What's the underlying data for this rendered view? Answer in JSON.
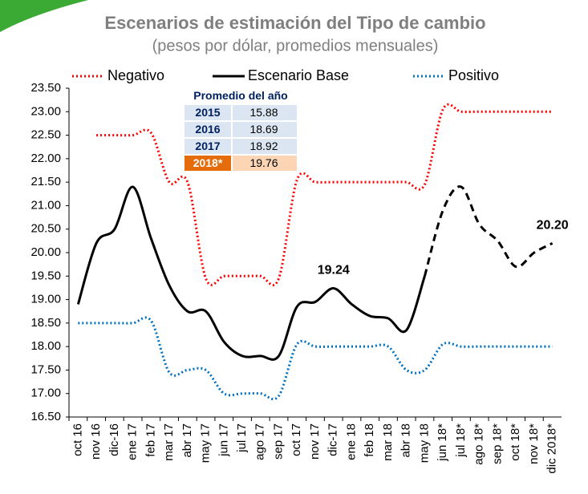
{
  "chart_data": {
    "type": "line",
    "title": "Escenarios de estimación del Tipo de cambio",
    "subtitle": "(pesos por dólar, promedios mensuales)",
    "categories": [
      "oct 16",
      "nov 16",
      "dic-16",
      "ene 17",
      "feb 17",
      "mar 17",
      "abr 17",
      "may 17",
      "jun 17",
      "jul 17",
      "ago 17",
      "sep 17",
      "oct 17",
      "nov 17",
      "dic-17",
      "ene 18",
      "feb 18",
      "mar 18",
      "abr 18",
      "may 18",
      "jun 18*",
      "jul 18*",
      "ago 18*",
      "sep 18*",
      "oct 18*",
      "nov 18*",
      "dic 2018*"
    ],
    "series": [
      {
        "name": "Negativo",
        "color": "#ff0000",
        "style": "dotted",
        "values": [
          null,
          22.5,
          22.5,
          22.5,
          22.55,
          21.5,
          21.5,
          19.45,
          19.5,
          19.5,
          19.5,
          19.45,
          21.55,
          21.5,
          21.5,
          21.5,
          21.5,
          21.5,
          21.5,
          21.45,
          23.05,
          23.0,
          23.0,
          23.0,
          23.0,
          23.0,
          23.0
        ]
      },
      {
        "name": "Escenario Base",
        "color": "#000000",
        "style": "solid",
        "dash_from": 19,
        "values": [
          18.9,
          20.2,
          20.5,
          21.4,
          20.3,
          19.3,
          18.75,
          18.75,
          18.1,
          17.8,
          17.8,
          17.8,
          18.85,
          18.95,
          19.24,
          18.9,
          18.65,
          18.6,
          18.35,
          19.5,
          20.9,
          21.4,
          20.6,
          20.25,
          19.7,
          20.0,
          20.2
        ],
        "value_labels": [
          null,
          null,
          null,
          null,
          null,
          null,
          null,
          null,
          null,
          null,
          null,
          null,
          null,
          null,
          "19.24",
          null,
          null,
          null,
          null,
          null,
          null,
          null,
          null,
          null,
          null,
          null,
          "20.20"
        ]
      },
      {
        "name": "Positivo",
        "color": "#0070c0",
        "style": "dotted",
        "values": [
          18.5,
          18.5,
          18.5,
          18.5,
          18.55,
          17.45,
          17.5,
          17.5,
          17.0,
          17.0,
          17.0,
          16.95,
          18.05,
          18.0,
          18.0,
          18.0,
          18.0,
          18.0,
          17.5,
          17.5,
          18.05,
          18.0,
          18.0,
          18.0,
          18.0,
          18.0,
          18.0
        ]
      }
    ],
    "ylim": [
      16.5,
      23.5
    ],
    "yticks": [
      {
        "value": 16.5,
        "label": "16.50"
      },
      {
        "value": 17,
        "label": "17.00"
      },
      {
        "value": 17.5,
        "label": "17.50"
      },
      {
        "value": 18,
        "label": "18.00"
      },
      {
        "value": 18.5,
        "label": "18.50"
      },
      {
        "value": 19,
        "label": "19.00"
      },
      {
        "value": 19.5,
        "label": "19.50"
      },
      {
        "value": 20,
        "label": "20.00"
      },
      {
        "value": 20.5,
        "label": "20.50"
      },
      {
        "value": 21,
        "label": "21.00"
      },
      {
        "value": 21.5,
        "label": "21.50"
      },
      {
        "value": 22,
        "label": "22.00"
      },
      {
        "value": 22.5,
        "label": "22.50"
      },
      {
        "value": 23,
        "label": "23.00"
      },
      {
        "value": 23.5,
        "label": "23.50"
      }
    ],
    "grid": false,
    "legend": "top",
    "inset_table": {
      "title": "Promedio del año",
      "rows": [
        [
          "2015",
          15.88
        ],
        [
          "2016",
          18.69
        ],
        [
          "2017",
          18.92
        ],
        [
          "2018*",
          19.76
        ]
      ]
    }
  }
}
